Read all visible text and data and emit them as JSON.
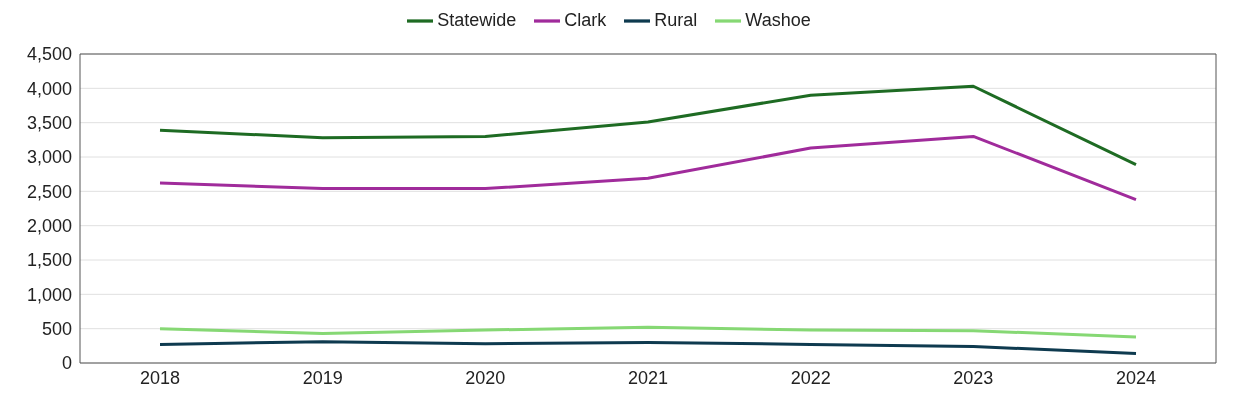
{
  "chart_data": {
    "type": "line",
    "categories": [
      "2018",
      "2019",
      "2020",
      "2021",
      "2022",
      "2023",
      "2024"
    ],
    "series": [
      {
        "name": "Statewide",
        "color": "#1e6b23",
        "values": [
          3390,
          3280,
          3300,
          3510,
          3900,
          4030,
          2890
        ]
      },
      {
        "name": "Clark",
        "color": "#a02b9b",
        "values": [
          2620,
          2540,
          2540,
          2690,
          3130,
          3300,
          2380
        ]
      },
      {
        "name": "Rural",
        "color": "#0e3a4f",
        "values": [
          270,
          310,
          280,
          300,
          270,
          240,
          140
        ]
      },
      {
        "name": "Washoe",
        "color": "#86d874",
        "values": [
          500,
          430,
          480,
          520,
          480,
          470,
          380
        ]
      }
    ],
    "ylim": [
      0,
      4500
    ],
    "yticks": [
      0,
      500,
      {
        "value": 1000,
        "label": "1,000"
      },
      {
        "value": 1500,
        "label": "1,500"
      },
      {
        "value": 2000,
        "label": "2,000"
      },
      {
        "value": 2500,
        "label": "2,500"
      },
      {
        "value": 3000,
        "label": "3,000"
      },
      {
        "value": 3500,
        "label": "3,500"
      },
      {
        "value": 4000,
        "label": "4,000"
      },
      {
        "value": 4500,
        "label": "4,500"
      }
    ],
    "grid": "y",
    "legend": "top",
    "marker": "none",
    "line_style": "solid"
  }
}
